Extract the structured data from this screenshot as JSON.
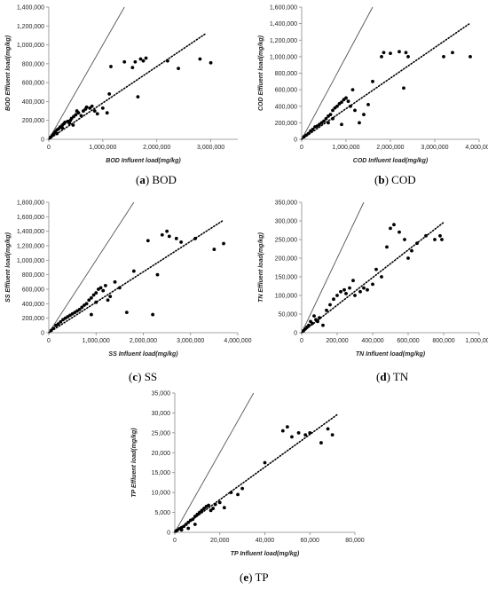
{
  "chart_data": [
    {
      "type": "scatter",
      "panel": "a",
      "caption_letter": "(a)",
      "caption_text": "BOD",
      "xlabel": "BOD Influent load(mg/kg)",
      "ylabel": "BOD Effluent load(mg/kg)",
      "xlim": [
        0,
        3500000
      ],
      "ylim": [
        0,
        1400000
      ],
      "xticks": [
        0,
        1000000,
        2000000,
        3000000
      ],
      "yticks": [
        0,
        200000,
        400000,
        600000,
        800000,
        1000000,
        1200000,
        1400000
      ],
      "xtick_labels": [
        "0",
        "1,000,000",
        "2,000,000",
        "3,000,000"
      ],
      "ytick_labels": [
        "0",
        "200,000",
        "400,000",
        "600,000",
        "800,000",
        "1,000,000",
        "1,200,000",
        "1,400,000"
      ],
      "identity_line": true,
      "trend_slope": 0.385,
      "trend_end_x": 2900000,
      "points": [
        [
          30000,
          20000
        ],
        [
          60000,
          40000
        ],
        [
          90000,
          60000
        ],
        [
          120000,
          80000
        ],
        [
          150000,
          100000
        ],
        [
          180000,
          110000
        ],
        [
          210000,
          130000
        ],
        [
          250000,
          150000
        ],
        [
          280000,
          165000
        ],
        [
          300000,
          180000
        ],
        [
          350000,
          190000
        ],
        [
          400000,
          200000
        ],
        [
          420000,
          220000
        ],
        [
          460000,
          240000
        ],
        [
          500000,
          260000
        ],
        [
          520000,
          300000
        ],
        [
          550000,
          280000
        ],
        [
          600000,
          250000
        ],
        [
          640000,
          300000
        ],
        [
          680000,
          320000
        ],
        [
          700000,
          340000
        ],
        [
          760000,
          330000
        ],
        [
          800000,
          350000
        ],
        [
          850000,
          300000
        ],
        [
          900000,
          270000
        ],
        [
          1000000,
          330000
        ],
        [
          1080000,
          280000
        ],
        [
          1120000,
          480000
        ],
        [
          1150000,
          770000
        ],
        [
          1400000,
          820000
        ],
        [
          1550000,
          760000
        ],
        [
          1600000,
          820000
        ],
        [
          1650000,
          450000
        ],
        [
          1700000,
          850000
        ],
        [
          1750000,
          830000
        ],
        [
          1800000,
          860000
        ],
        [
          2200000,
          830000
        ],
        [
          2400000,
          750000
        ],
        [
          2800000,
          850000
        ],
        [
          3000000,
          810000
        ],
        [
          150000,
          60000
        ],
        [
          250000,
          120000
        ],
        [
          380000,
          170000
        ],
        [
          450000,
          150000
        ]
      ]
    },
    {
      "type": "scatter",
      "panel": "b",
      "caption_letter": "(b)",
      "caption_text": "COD",
      "xlabel": "COD Influent load(mg/kg)",
      "ylabel": "COD Effluent load(mg/kg)",
      "xlim": [
        0,
        4000000
      ],
      "ylim": [
        0,
        1600000
      ],
      "xticks": [
        0,
        1000000,
        2000000,
        3000000,
        4000000
      ],
      "yticks": [
        0,
        200000,
        400000,
        600000,
        800000,
        1000000,
        1200000,
        1400000,
        1600000
      ],
      "xtick_labels": [
        "0",
        "1,000,000",
        "2,000,000",
        "3,000,000",
        "4,000,000"
      ],
      "ytick_labels": [
        "0",
        "200,000",
        "400,000",
        "600,000",
        "800,000",
        "1,000,000",
        "1,200,000",
        "1,400,000",
        "1,600,000"
      ],
      "identity_line": true,
      "trend_slope": 0.37,
      "trend_end_x": 3800000,
      "points": [
        [
          50000,
          30000
        ],
        [
          100000,
          50000
        ],
        [
          150000,
          70000
        ],
        [
          200000,
          100000
        ],
        [
          250000,
          120000
        ],
        [
          300000,
          150000
        ],
        [
          350000,
          160000
        ],
        [
          400000,
          180000
        ],
        [
          450000,
          200000
        ],
        [
          500000,
          220000
        ],
        [
          550000,
          250000
        ],
        [
          600000,
          280000
        ],
        [
          650000,
          300000
        ],
        [
          700000,
          350000
        ],
        [
          750000,
          380000
        ],
        [
          800000,
          400000
        ],
        [
          850000,
          430000
        ],
        [
          900000,
          450000
        ],
        [
          950000,
          480000
        ],
        [
          1000000,
          500000
        ],
        [
          1050000,
          460000
        ],
        [
          1100000,
          400000
        ],
        [
          1200000,
          350000
        ],
        [
          1300000,
          200000
        ],
        [
          1400000,
          300000
        ],
        [
          1500000,
          420000
        ],
        [
          1600000,
          700000
        ],
        [
          1800000,
          1000000
        ],
        [
          1850000,
          1050000
        ],
        [
          2000000,
          1040000
        ],
        [
          2200000,
          1060000
        ],
        [
          2300000,
          620000
        ],
        [
          2350000,
          1050000
        ],
        [
          2400000,
          1000000
        ],
        [
          3200000,
          1000000
        ],
        [
          3400000,
          1050000
        ],
        [
          3800000,
          1000000
        ],
        [
          600000,
          200000
        ],
        [
          700000,
          250000
        ],
        [
          900000,
          180000
        ],
        [
          1150000,
          600000
        ]
      ]
    },
    {
      "type": "scatter",
      "panel": "c",
      "caption_letter": "(c)",
      "caption_text": "SS",
      "xlabel": "SS Influent load(mg/kg)",
      "ylabel": "SS Effluent load(mg/kg)",
      "xlim": [
        0,
        4000000
      ],
      "ylim": [
        0,
        1800000
      ],
      "xticks": [
        0,
        1000000,
        2000000,
        3000000,
        4000000
      ],
      "yticks": [
        0,
        200000,
        400000,
        600000,
        800000,
        1000000,
        1200000,
        1400000,
        1600000,
        1800000
      ],
      "xtick_labels": [
        "0",
        "1,000,000",
        "2,000,000",
        "3,000,000",
        "4,000,000"
      ],
      "ytick_labels": [
        "0",
        "200,000",
        "400,000",
        "600,000",
        "800,000",
        "1,000,000",
        "1,200,000",
        "1,400,000",
        "1,600,000",
        "1,800,000"
      ],
      "identity_line": true,
      "trend_slope": 0.42,
      "trend_end_x": 3700000,
      "points": [
        [
          50000,
          30000
        ],
        [
          100000,
          60000
        ],
        [
          150000,
          100000
        ],
        [
          200000,
          120000
        ],
        [
          250000,
          150000
        ],
        [
          300000,
          180000
        ],
        [
          350000,
          200000
        ],
        [
          400000,
          220000
        ],
        [
          450000,
          240000
        ],
        [
          500000,
          260000
        ],
        [
          550000,
          280000
        ],
        [
          600000,
          300000
        ],
        [
          650000,
          320000
        ],
        [
          700000,
          350000
        ],
        [
          750000,
          380000
        ],
        [
          800000,
          400000
        ],
        [
          850000,
          450000
        ],
        [
          900000,
          480000
        ],
        [
          950000,
          520000
        ],
        [
          1000000,
          550000
        ],
        [
          1050000,
          600000
        ],
        [
          1100000,
          620000
        ],
        [
          1150000,
          580000
        ],
        [
          1200000,
          650000
        ],
        [
          1250000,
          450000
        ],
        [
          1300000,
          500000
        ],
        [
          1400000,
          700000
        ],
        [
          1500000,
          620000
        ],
        [
          1650000,
          280000
        ],
        [
          1800000,
          850000
        ],
        [
          2100000,
          1270000
        ],
        [
          2200000,
          250000
        ],
        [
          2300000,
          800000
        ],
        [
          2400000,
          1350000
        ],
        [
          2500000,
          1400000
        ],
        [
          2550000,
          1330000
        ],
        [
          2700000,
          1300000
        ],
        [
          2800000,
          1250000
        ],
        [
          3100000,
          1300000
        ],
        [
          3500000,
          1150000
        ],
        [
          3700000,
          1230000
        ],
        [
          900000,
          250000
        ],
        [
          1000000,
          420000
        ]
      ]
    },
    {
      "type": "scatter",
      "panel": "d",
      "caption_letter": "(d)",
      "caption_text": "TN",
      "xlabel": "TN Influent load(mg/kg)",
      "ylabel": "TN Effluent load(mg/kg)",
      "xlim": [
        0,
        1000000
      ],
      "ylim": [
        0,
        350000
      ],
      "xticks": [
        0,
        200000,
        400000,
        600000,
        800000,
        1000000
      ],
      "yticks": [
        0,
        50000,
        100000,
        150000,
        200000,
        250000,
        300000,
        350000
      ],
      "xtick_labels": [
        "0",
        "200,000",
        "400,000",
        "600,000",
        "800,000",
        "1,000,000"
      ],
      "ytick_labels": [
        "0",
        "50,000",
        "100,000",
        "150,000",
        "200,000",
        "250,000",
        "300,000",
        "350,000"
      ],
      "identity_line": true,
      "trend_slope": 0.37,
      "trend_end_x": 800000,
      "points": [
        [
          10000,
          5000
        ],
        [
          20000,
          10000
        ],
        [
          30000,
          15000
        ],
        [
          40000,
          20000
        ],
        [
          50000,
          30000
        ],
        [
          60000,
          25000
        ],
        [
          80000,
          35000
        ],
        [
          100000,
          40000
        ],
        [
          120000,
          20000
        ],
        [
          140000,
          60000
        ],
        [
          160000,
          75000
        ],
        [
          180000,
          90000
        ],
        [
          200000,
          100000
        ],
        [
          220000,
          110000
        ],
        [
          240000,
          115000
        ],
        [
          250000,
          105000
        ],
        [
          270000,
          120000
        ],
        [
          290000,
          140000
        ],
        [
          300000,
          100000
        ],
        [
          330000,
          110000
        ],
        [
          350000,
          120000
        ],
        [
          370000,
          115000
        ],
        [
          400000,
          130000
        ],
        [
          420000,
          170000
        ],
        [
          450000,
          150000
        ],
        [
          480000,
          230000
        ],
        [
          500000,
          280000
        ],
        [
          520000,
          290000
        ],
        [
          550000,
          270000
        ],
        [
          580000,
          250000
        ],
        [
          600000,
          200000
        ],
        [
          620000,
          220000
        ],
        [
          650000,
          240000
        ],
        [
          700000,
          260000
        ],
        [
          750000,
          250000
        ],
        [
          780000,
          260000
        ],
        [
          790000,
          250000
        ],
        [
          70000,
          45000
        ],
        [
          90000,
          30000
        ]
      ]
    },
    {
      "type": "scatter",
      "panel": "e",
      "caption_letter": "(e)",
      "caption_text": "TP",
      "xlabel": "TP Influent load(mg/kg)",
      "ylabel": "TP Effluent load(mg/kg)",
      "xlim": [
        0,
        80000
      ],
      "ylim": [
        0,
        35000
      ],
      "xticks": [
        0,
        20000,
        40000,
        60000,
        80000
      ],
      "yticks": [
        0,
        5000,
        10000,
        15000,
        20000,
        25000,
        30000,
        35000
      ],
      "xtick_labels": [
        "0",
        "20,000",
        "40,000",
        "60,000",
        "80,000"
      ],
      "ytick_labels": [
        "0",
        "5,000",
        "10,000",
        "15,000",
        "20,000",
        "25,000",
        "30,000",
        "35,000"
      ],
      "identity_line": true,
      "trend_slope": 0.41,
      "trend_end_x": 72000,
      "points": [
        [
          500,
          300
        ],
        [
          1000,
          500
        ],
        [
          2000,
          900
        ],
        [
          3000,
          1200
        ],
        [
          4000,
          1500
        ],
        [
          5000,
          2000
        ],
        [
          6000,
          2500
        ],
        [
          7000,
          3000
        ],
        [
          8000,
          3300
        ],
        [
          9000,
          4000
        ],
        [
          10000,
          4500
        ],
        [
          11000,
          5000
        ],
        [
          12000,
          5500
        ],
        [
          13000,
          6000
        ],
        [
          14000,
          6500
        ],
        [
          15000,
          6800
        ],
        [
          17000,
          6000
        ],
        [
          18000,
          7000
        ],
        [
          20000,
          7500
        ],
        [
          22000,
          6200
        ],
        [
          25000,
          10000
        ],
        [
          28000,
          9500
        ],
        [
          30000,
          11000
        ],
        [
          40000,
          17500
        ],
        [
          48000,
          25500
        ],
        [
          50000,
          26500
        ],
        [
          52000,
          24000
        ],
        [
          55000,
          25000
        ],
        [
          58000,
          24500
        ],
        [
          60000,
          25000
        ],
        [
          65000,
          22500
        ],
        [
          68000,
          26000
        ],
        [
          70000,
          24500
        ],
        [
          3000,
          600
        ],
        [
          6000,
          1000
        ],
        [
          9000,
          2000
        ],
        [
          16000,
          5500
        ]
      ]
    }
  ]
}
